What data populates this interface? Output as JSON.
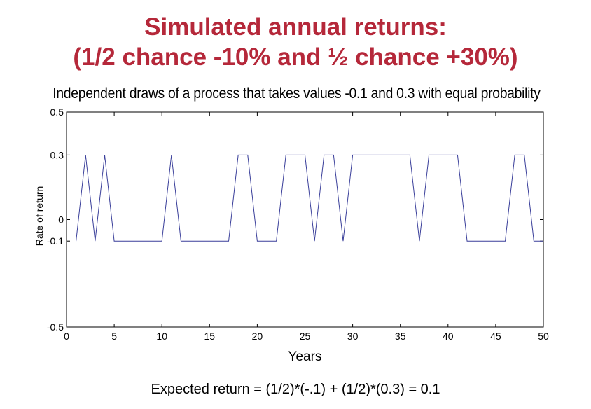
{
  "slide": {
    "title_line_1": "Simulated annual returns:",
    "title_line_2": "(1/2 chance -10% and ½ chance +30%)",
    "footer": "Expected return = (1/2)*(-.1) + (1/2)*(0.3) = 0.1"
  },
  "colors": {
    "title": "#b5283a",
    "series_line": "#3a3f9a",
    "axis": "#000000"
  },
  "chart_data": {
    "type": "line",
    "title": "Independent draws of a process that takes values -0.1 and 0.3 with equal probability",
    "xlabel": "Years",
    "ylabel": "Rate of return",
    "xlim": [
      0,
      50
    ],
    "ylim": [
      -0.5,
      0.5
    ],
    "xticks": [
      0,
      5,
      10,
      15,
      20,
      25,
      30,
      35,
      40,
      45,
      50
    ],
    "xtick_labels": [
      "0",
      "5",
      "10",
      "15",
      "20",
      "25",
      "30",
      "35",
      "40",
      "45",
      "50"
    ],
    "yticks": [
      0.5,
      0.3,
      0,
      -0.1,
      -0.5
    ],
    "ytick_labels": [
      "0.5",
      "0.3",
      "0",
      "-0.1",
      "-0.5"
    ],
    "grid": false,
    "series": [
      {
        "x": [
          1,
          2,
          3,
          4,
          5,
          6,
          7,
          8,
          9,
          10,
          11,
          12,
          13,
          14,
          15,
          16,
          17,
          18,
          19,
          20,
          21,
          22,
          23,
          24,
          25,
          26,
          27,
          28,
          29,
          30,
          31,
          32,
          33,
          34,
          35,
          36,
          37,
          38,
          39,
          40,
          41,
          42,
          43,
          44,
          45,
          46,
          47,
          48,
          49,
          50
        ],
        "y": [
          -0.1,
          0.3,
          -0.1,
          0.3,
          -0.1,
          -0.1,
          -0.1,
          -0.1,
          -0.1,
          -0.1,
          0.3,
          -0.1,
          -0.1,
          -0.1,
          -0.1,
          -0.1,
          -0.1,
          0.3,
          0.3,
          -0.1,
          -0.1,
          -0.1,
          0.3,
          0.3,
          0.3,
          -0.1,
          0.3,
          0.3,
          -0.1,
          0.3,
          0.3,
          0.3,
          0.3,
          0.3,
          0.3,
          0.3,
          -0.1,
          0.3,
          0.3,
          0.3,
          0.3,
          -0.1,
          -0.1,
          -0.1,
          -0.1,
          -0.1,
          0.3,
          0.3,
          -0.1,
          -0.1
        ]
      }
    ]
  }
}
